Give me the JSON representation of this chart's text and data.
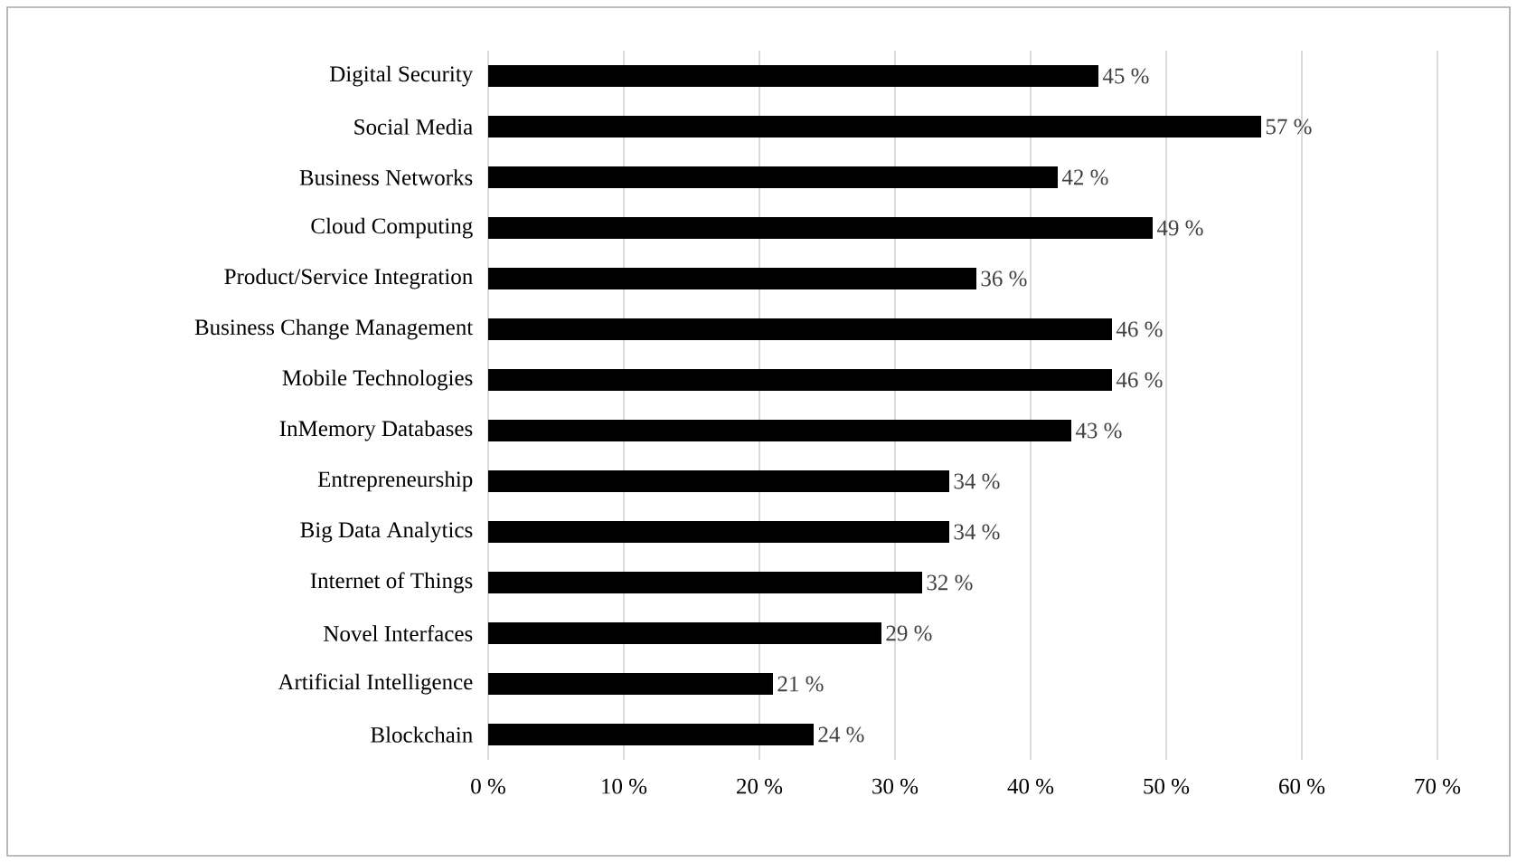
{
  "chart_data": {
    "type": "bar",
    "orientation": "horizontal",
    "color": "#000000",
    "categories": [
      "Digital Security",
      "Social Media",
      "Business Networks",
      "Cloud Computing",
      "Product/Service Integration",
      "Business Change Management",
      "Mobile Technologies",
      "InMemory Databases",
      "Entrepreneurship",
      "Big Data Analytics",
      "Internet of Things",
      "Novel Interfaces",
      "Artificial Intelligence",
      "Blockchain"
    ],
    "values": [
      45,
      57,
      42,
      49,
      36,
      46,
      46,
      43,
      34,
      34,
      32,
      29,
      21,
      24
    ],
    "value_labels": [
      "45 %",
      "57 %",
      "42 %",
      "49 %",
      "36 %",
      "46 %",
      "46 %",
      "43 %",
      "34 %",
      "34 %",
      "32 %",
      "29 %",
      "21 %",
      "24 %"
    ],
    "xlim": [
      0,
      70
    ],
    "xticks": [
      {
        "value": 0,
        "label": "0 %"
      },
      {
        "value": 10,
        "label": "10 %"
      },
      {
        "value": 20,
        "label": "20 %"
      },
      {
        "value": 30,
        "label": "30 %"
      },
      {
        "value": 40,
        "label": "40 %"
      },
      {
        "value": 50,
        "label": "50 %"
      },
      {
        "value": 60,
        "label": "60 %"
      },
      {
        "value": 70,
        "label": "70 %"
      }
    ],
    "grid": "x"
  }
}
